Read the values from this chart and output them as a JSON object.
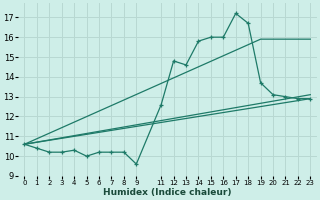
{
  "xlabel": "Humidex (Indice chaleur)",
  "bg_color": "#ceeee8",
  "grid_color": "#b8d8d2",
  "line_color": "#1e7a68",
  "xlim": [
    -0.5,
    23.5
  ],
  "ylim": [
    9.0,
    17.7
  ],
  "yticks": [
    9,
    10,
    11,
    12,
    13,
    14,
    15,
    16,
    17
  ],
  "xtick_vals": [
    0,
    1,
    2,
    3,
    4,
    5,
    6,
    7,
    8,
    9,
    11,
    12,
    13,
    14,
    15,
    16,
    17,
    18,
    19,
    20,
    21,
    22,
    23
  ],
  "xtick_labels": [
    "0",
    "1",
    "2",
    "3",
    "4",
    "5",
    "6",
    "7",
    "8",
    "9",
    "11",
    "12",
    "13",
    "14",
    "15",
    "16",
    "17",
    "18",
    "19",
    "20",
    "21",
    "22",
    "23"
  ],
  "series1_x": [
    0,
    1,
    2,
    3,
    4,
    5,
    6,
    7,
    8,
    9,
    11,
    12,
    13,
    14,
    15,
    16,
    17,
    18,
    19,
    20,
    21,
    22,
    23
  ],
  "series1_y": [
    10.6,
    10.4,
    10.2,
    10.2,
    10.3,
    10.0,
    10.2,
    10.2,
    10.2,
    9.6,
    12.6,
    14.8,
    14.6,
    15.8,
    16.0,
    16.0,
    17.2,
    16.7,
    13.7,
    13.1,
    13.0,
    12.9,
    12.9
  ],
  "series2_x": [
    0,
    23
  ],
  "series2_y": [
    10.6,
    12.9
  ],
  "series3_x": [
    0,
    23
  ],
  "series3_y": [
    10.6,
    13.1
  ],
  "series4_x": [
    0,
    19,
    23
  ],
  "series4_y": [
    10.6,
    15.9,
    15.9
  ]
}
